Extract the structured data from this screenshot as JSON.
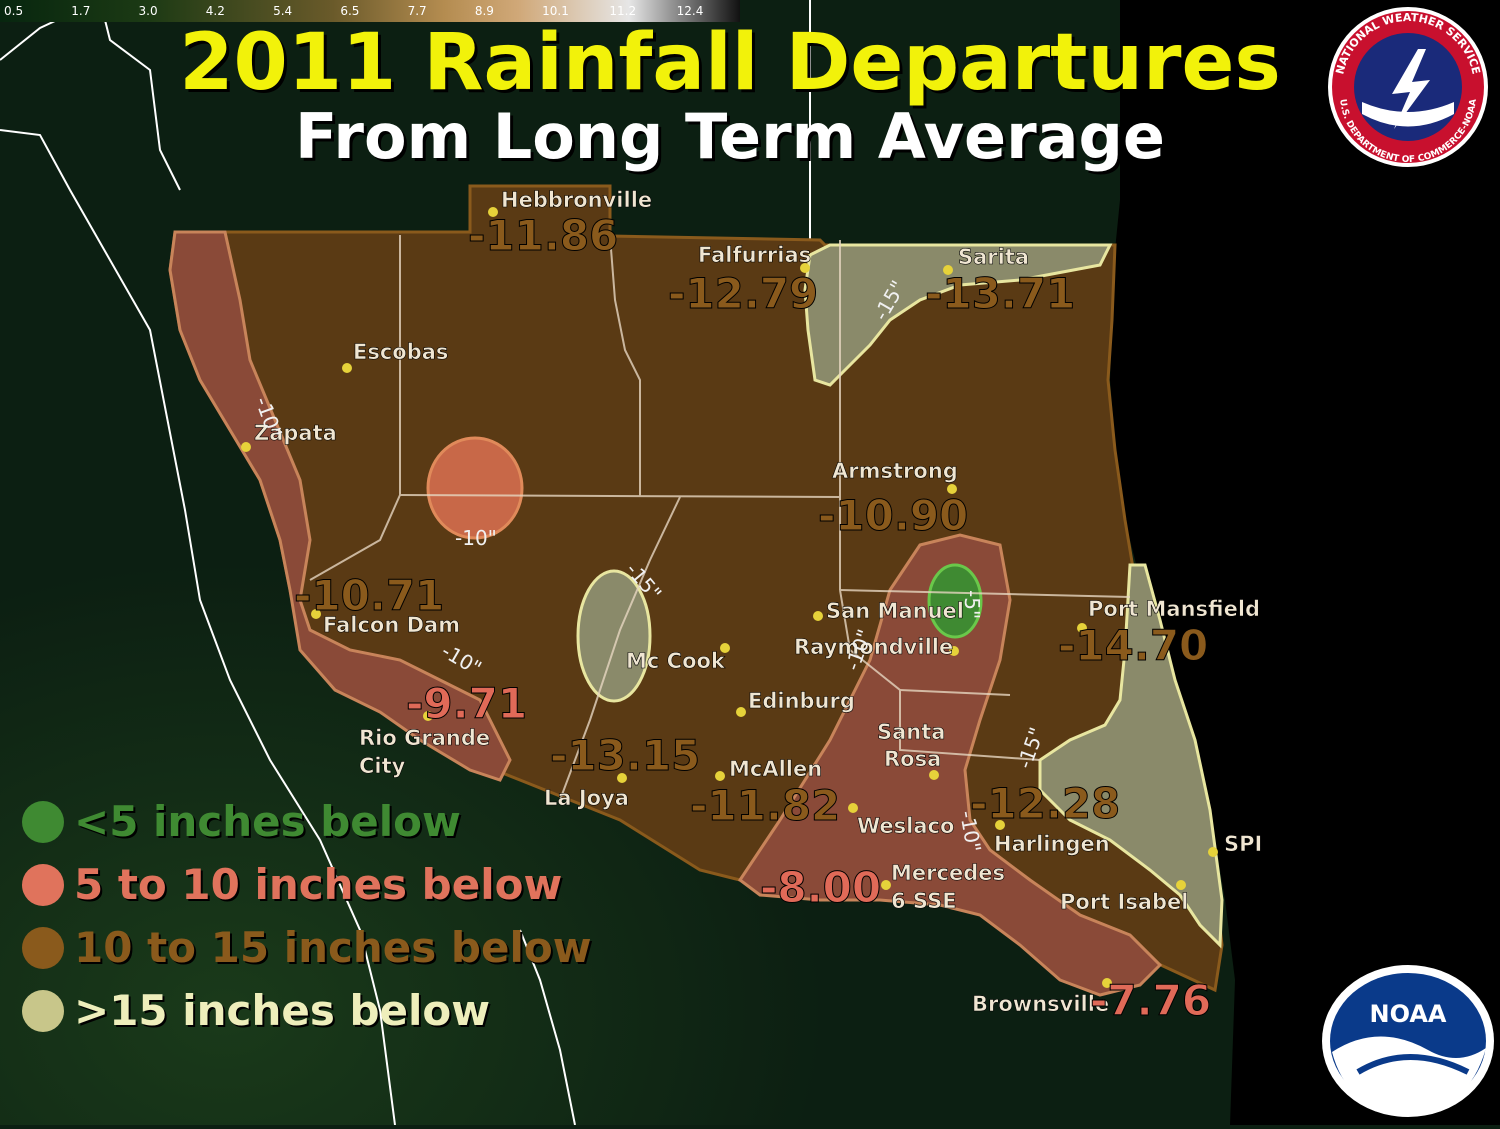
{
  "title": "2011 Rainfall Departures",
  "subtitle": "From Long Term Average",
  "colorbar": {
    "ticks": [
      "0.5",
      "1.7",
      "3.0",
      "4.2",
      "5.4",
      "6.5",
      "7.7",
      "8.9",
      "10.1",
      "11.2",
      "12.4"
    ]
  },
  "legend": [
    {
      "label": "<5 inches below",
      "color": "#3f8a32"
    },
    {
      "label": "5 to 10 inches below",
      "color": "#e0735c"
    },
    {
      "label": "10 to 15 inches below",
      "color": "#8a5a1c"
    },
    {
      "label": ">15 inches below",
      "color": "#c8c68a"
    }
  ],
  "stations": [
    {
      "name": "Hebbronville",
      "value": "-11.86"
    },
    {
      "name": "Falfurrias",
      "value": "-12.79"
    },
    {
      "name": "Sarita",
      "value": "-13.71"
    },
    {
      "name": "Escobas",
      "value": ""
    },
    {
      "name": "Zapata",
      "value": ""
    },
    {
      "name": "Armstrong",
      "value": "-10.90"
    },
    {
      "name": "Falcon Dam",
      "value": "-10.71"
    },
    {
      "name": "San Manuel",
      "value": ""
    },
    {
      "name": "Raymondville",
      "value": ""
    },
    {
      "name": "Port Mansfield",
      "value": "-14.70"
    },
    {
      "name": "Mc Cook",
      "value": ""
    },
    {
      "name": "Edinburg",
      "value": ""
    },
    {
      "name": "Rio Grande City",
      "value": "-9.71"
    },
    {
      "name": "La Joya",
      "value": "-13.15"
    },
    {
      "name": "McAllen",
      "value": "-11.82"
    },
    {
      "name": "Santa Rosa",
      "value": ""
    },
    {
      "name": "Harlingen",
      "value": "-12.28"
    },
    {
      "name": "Weslaco",
      "value": ""
    },
    {
      "name": "Mercedes 6 SSE",
      "value": "-8.00"
    },
    {
      "name": "SPI",
      "value": ""
    },
    {
      "name": "Port Isabel",
      "value": ""
    },
    {
      "name": "Brownsville",
      "value": "-7.76"
    }
  ],
  "contour_labels": [
    "-10\"",
    "-10\"",
    "-10\"",
    "-15\"",
    "-15\"",
    "-10\"",
    "-5\"",
    "-15\"",
    "-10\""
  ],
  "logos": {
    "nws_text_top": "NATIONAL WEATHER SERVICE",
    "nws_text_bottom": "U.S. DEPARTMENT OF COMMERCE-NOAA",
    "noaa_text": "NOAA"
  }
}
